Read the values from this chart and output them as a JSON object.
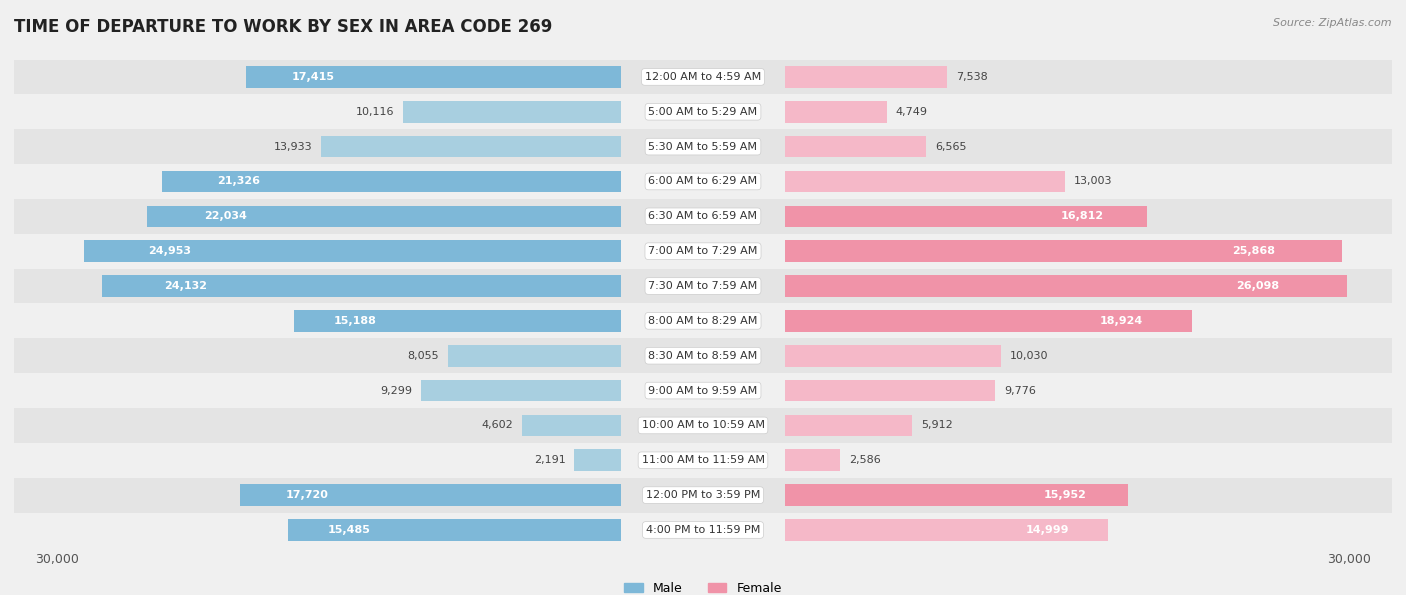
{
  "title": "TIME OF DEPARTURE TO WORK BY SEX IN AREA CODE 269",
  "source": "Source: ZipAtlas.com",
  "categories": [
    "12:00 AM to 4:59 AM",
    "5:00 AM to 5:29 AM",
    "5:30 AM to 5:59 AM",
    "6:00 AM to 6:29 AM",
    "6:30 AM to 6:59 AM",
    "7:00 AM to 7:29 AM",
    "7:30 AM to 7:59 AM",
    "8:00 AM to 8:29 AM",
    "8:30 AM to 8:59 AM",
    "9:00 AM to 9:59 AM",
    "10:00 AM to 10:59 AM",
    "11:00 AM to 11:59 AM",
    "12:00 PM to 3:59 PM",
    "4:00 PM to 11:59 PM"
  ],
  "male_values": [
    17415,
    10116,
    13933,
    21326,
    22034,
    24953,
    24132,
    15188,
    8055,
    9299,
    4602,
    2191,
    17720,
    15485
  ],
  "female_values": [
    7538,
    4749,
    6565,
    13003,
    16812,
    25868,
    26098,
    18924,
    10030,
    9776,
    5912,
    2586,
    15952,
    14999
  ],
  "male_color": "#7eb8d8",
  "female_color": "#f093a8",
  "male_color_light": "#a8cfe0",
  "female_color_light": "#f5b8c8",
  "background_color": "#f0f0f0",
  "row_bg_color_odd": "#e4e4e4",
  "row_bg_color_even": "#f0f0f0",
  "axis_limit": 30000,
  "bar_height": 0.62,
  "title_fontsize": 12,
  "label_fontsize": 8,
  "category_fontsize": 8,
  "legend_fontsize": 9,
  "inside_label_threshold": 18000,
  "male_inside_threshold": 18000,
  "female_inside_threshold": 18000
}
